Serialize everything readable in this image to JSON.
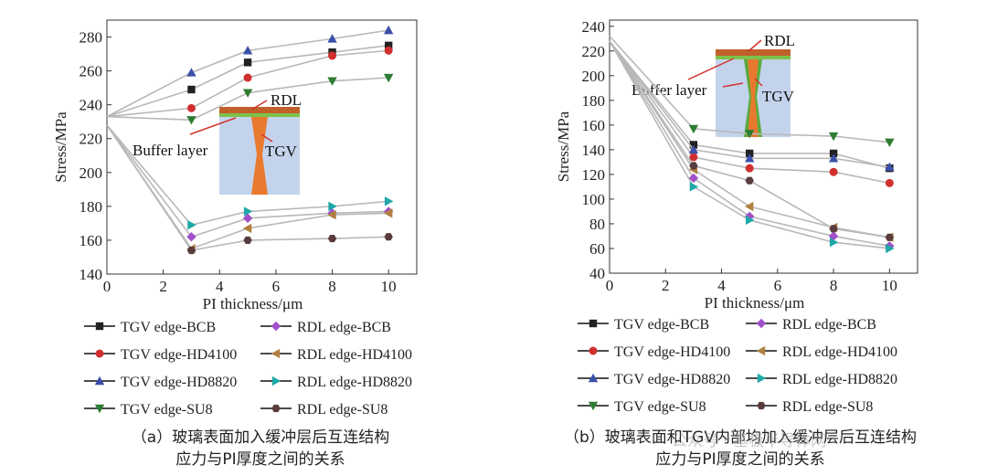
{
  "watermark": "公众号 · 基板半导体网",
  "legend_entries": [
    {
      "label": "TGV edge-BCB",
      "color": "#222222",
      "marker": "square"
    },
    {
      "label": "RDL edge-BCB",
      "color": "#a050c8",
      "marker": "diamond"
    },
    {
      "label": "TGV edge-HD4100",
      "color": "#d03030",
      "marker": "circle"
    },
    {
      "label": "RDL edge-HD4100",
      "color": "#b08040",
      "marker": "tri-left"
    },
    {
      "label": "TGV edge-HD8820",
      "color": "#3a4fa8",
      "marker": "tri-up"
    },
    {
      "label": "RDL edge-HD8820",
      "color": "#20a8a8",
      "marker": "tri-right"
    },
    {
      "label": "TGV edge-SU8",
      "color": "#2e7d32",
      "marker": "tri-down"
    },
    {
      "label": "RDL edge-SU8",
      "color": "#5a3c3c",
      "marker": "hexagon"
    }
  ],
  "chart_data": [
    {
      "type": "line",
      "id": "a",
      "xlabel": "PI thickness/μm",
      "ylabel": "Stress/MPa",
      "xlim": [
        0,
        11
      ],
      "ylim": [
        140,
        290
      ],
      "xticks": [
        0,
        2,
        4,
        6,
        8,
        10
      ],
      "yticks": [
        140,
        160,
        180,
        200,
        220,
        240,
        260,
        280
      ],
      "caption_line1": "（a）玻璃表面加入缓冲层后互连结构",
      "caption_line2": "应力与PI厚度之间的关系",
      "inset": {
        "rdl": "RDL",
        "buffer": "Buffer layer",
        "tgv": "TGV"
      },
      "series": [
        {
          "name": "TGV edge-BCB",
          "x": [
            0,
            3,
            5,
            8,
            10
          ],
          "values": [
            233,
            249,
            265,
            271,
            275
          ]
        },
        {
          "name": "TGV edge-HD4100",
          "x": [
            0,
            3,
            5,
            8,
            10
          ],
          "values": [
            233,
            238,
            256,
            269,
            272
          ]
        },
        {
          "name": "TGV edge-HD8820",
          "x": [
            0,
            3,
            5,
            8,
            10
          ],
          "values": [
            233,
            259,
            272,
            279,
            284
          ]
        },
        {
          "name": "TGV edge-SU8",
          "x": [
            0,
            3,
            5,
            8,
            10
          ],
          "values": [
            233,
            231,
            247,
            254,
            256
          ]
        },
        {
          "name": "RDL edge-BCB",
          "x": [
            0,
            3,
            5,
            8,
            10
          ],
          "values": [
            228,
            162,
            173,
            176,
            177
          ]
        },
        {
          "name": "RDL edge-HD4100",
          "x": [
            0,
            3,
            5,
            8,
            10
          ],
          "values": [
            228,
            155,
            167,
            175,
            176
          ]
        },
        {
          "name": "RDL edge-HD8820",
          "x": [
            0,
            3,
            5,
            8,
            10
          ],
          "values": [
            228,
            169,
            177,
            180,
            183
          ]
        },
        {
          "name": "RDL edge-SU8",
          "x": [
            0,
            3,
            5,
            8,
            10
          ],
          "values": [
            228,
            154,
            160,
            161,
            162
          ]
        }
      ]
    },
    {
      "type": "line",
      "id": "b",
      "xlabel": "PI thickness/μm",
      "ylabel": "Stress/MPa",
      "xlim": [
        0,
        11
      ],
      "ylim": [
        40,
        245
      ],
      "xticks": [
        0,
        2,
        4,
        6,
        8,
        10
      ],
      "yticks": [
        40,
        60,
        80,
        100,
        120,
        140,
        160,
        180,
        200,
        220,
        240
      ],
      "caption_line1": "（b）玻璃表面和TGV内部均加入缓冲层后互连结构",
      "caption_line2": "应力与PI厚度之间的关系",
      "inset": {
        "rdl": "RDL",
        "buffer": "Buffer layer",
        "tgv": "TGV"
      },
      "series": [
        {
          "name": "TGV edge-BCB",
          "x": [
            0,
            3,
            5,
            8,
            10
          ],
          "values": [
            228,
            144,
            137,
            137,
            125
          ]
        },
        {
          "name": "TGV edge-HD4100",
          "x": [
            0,
            3,
            5,
            8,
            10
          ],
          "values": [
            228,
            134,
            125,
            122,
            113
          ]
        },
        {
          "name": "TGV edge-HD8820",
          "x": [
            0,
            3,
            5,
            8,
            10
          ],
          "values": [
            228,
            140,
            133,
            133,
            126
          ]
        },
        {
          "name": "TGV edge-SU8",
          "x": [
            0,
            3,
            5,
            8,
            10
          ],
          "values": [
            232,
            157,
            153,
            151,
            146
          ]
        },
        {
          "name": "RDL edge-BCB",
          "x": [
            0,
            3,
            5,
            8,
            10
          ],
          "values": [
            228,
            117,
            86,
            70,
            62
          ]
        },
        {
          "name": "RDL edge-HD4100",
          "x": [
            0,
            3,
            5,
            8,
            10
          ],
          "values": [
            228,
            124,
            94,
            77,
            69
          ]
        },
        {
          "name": "RDL edge-HD8820",
          "x": [
            0,
            3,
            5,
            8,
            10
          ],
          "values": [
            228,
            110,
            83,
            65,
            60
          ]
        },
        {
          "name": "RDL edge-SU8",
          "x": [
            0,
            3,
            5,
            8,
            10
          ],
          "values": [
            228,
            127,
            115,
            76,
            69
          ]
        }
      ]
    }
  ]
}
